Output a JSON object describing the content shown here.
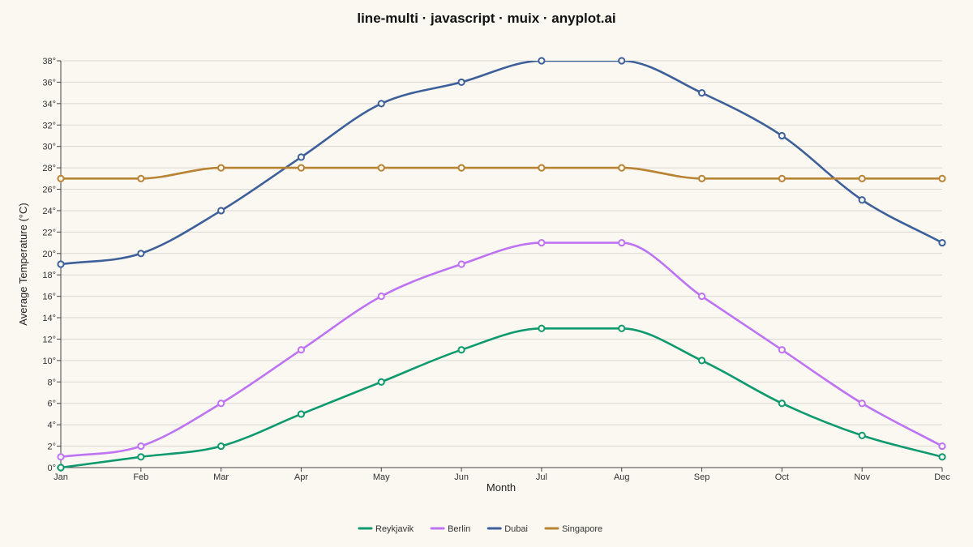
{
  "chart_data": {
    "type": "line",
    "title": "line-multi · javascript · muix · anyplot.ai",
    "xlabel": "Month",
    "ylabel": "Average Temperature (°C)",
    "categories": [
      "Jan",
      "Feb",
      "Mar",
      "Apr",
      "May",
      "Jun",
      "Jul",
      "Aug",
      "Sep",
      "Oct",
      "Nov",
      "Dec"
    ],
    "ylim": [
      0,
      38
    ],
    "y_ticks": [
      0,
      2,
      4,
      6,
      8,
      10,
      12,
      14,
      16,
      18,
      20,
      22,
      24,
      26,
      28,
      30,
      32,
      34,
      36,
      38
    ],
    "y_tick_suffix": "°",
    "grid": true,
    "legend_position": "bottom-center",
    "series": [
      {
        "name": "Reykjavik",
        "color": "#0E9A6E",
        "values": [
          0,
          1,
          2,
          5,
          8,
          11,
          13,
          13,
          10,
          6,
          3,
          1
        ]
      },
      {
        "name": "Berlin",
        "color": "#BE73F2",
        "values": [
          1,
          2,
          6,
          11,
          16,
          19,
          21,
          21,
          16,
          11,
          6,
          2
        ]
      },
      {
        "name": "Dubai",
        "color": "#3D5F9A",
        "values": [
          19,
          20,
          24,
          29,
          34,
          36,
          38,
          38,
          35,
          31,
          25,
          21
        ]
      },
      {
        "name": "Singapore",
        "color": "#B88332",
        "values": [
          27,
          27,
          28,
          28,
          28,
          28,
          28,
          28,
          27,
          27,
          27,
          27
        ]
      }
    ]
  }
}
